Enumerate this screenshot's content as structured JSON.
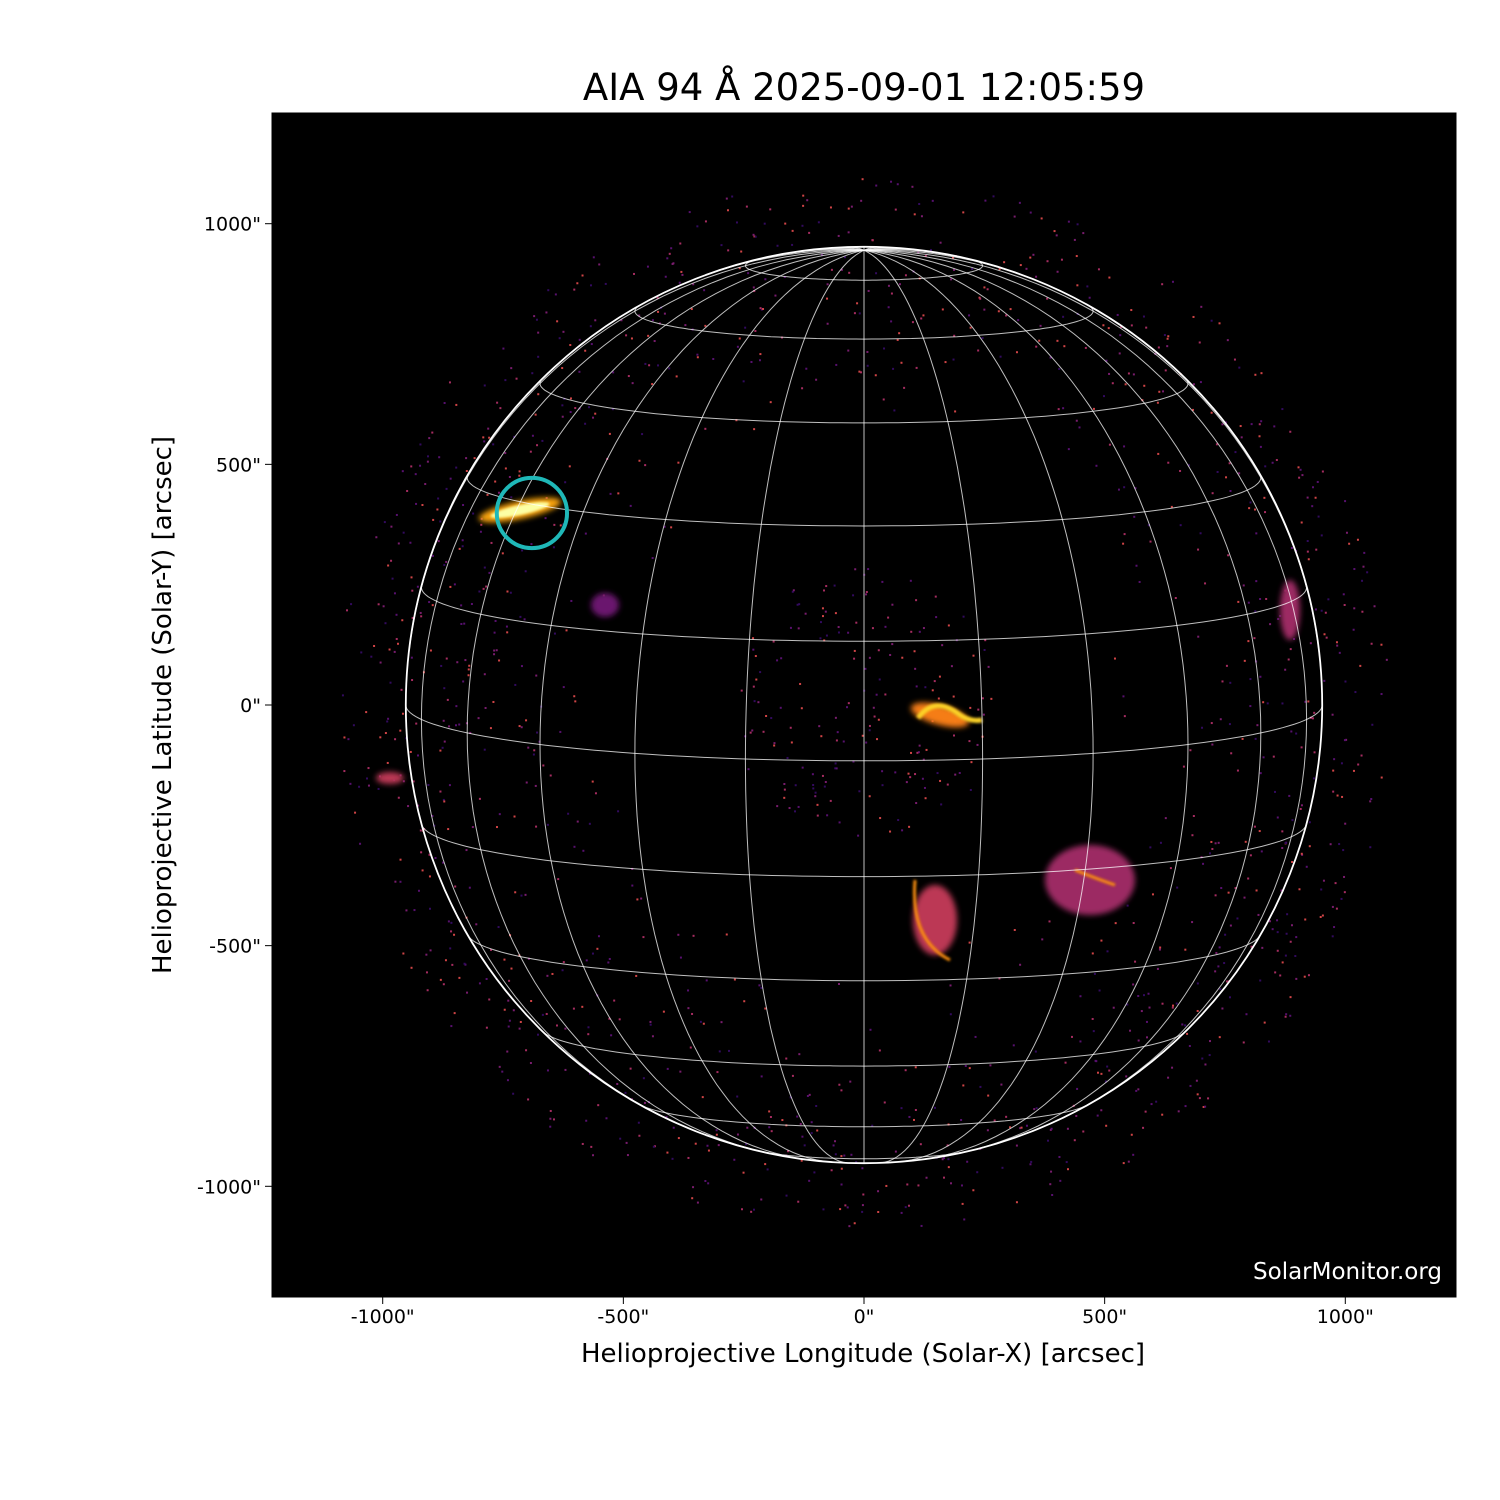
{
  "chart_data": {
    "type": "image",
    "title": "AIA 94 Å 2025-09-01 12:05:59",
    "xlabel": "Helioprojective Longitude (Solar-X) [arcsec]",
    "ylabel": "Helioprojective Latitude (Solar-Y) [arcsec]",
    "xlim": [
      -1230,
      1230
    ],
    "ylim": [
      -1230,
      1230
    ],
    "x_ticks": [
      -1000,
      -500,
      0,
      500,
      1000
    ],
    "y_ticks": [
      1000,
      500,
      0,
      -500,
      -1000
    ],
    "x_tick_labels": [
      "-1000\"",
      "-500\"",
      "0\"",
      "500\"",
      "1000\""
    ],
    "y_tick_labels": [
      "1000\"",
      "500\"",
      "0\"",
      "-500\"",
      "-1000\""
    ],
    "solar_radius_arcsec": 952,
    "b0_deg": 7,
    "grid_spacing_deg": 15,
    "colormap": "inferno-like (black-purple-orange-yellow)",
    "annotation_circle": {
      "x": -690,
      "y": 399,
      "radius": 73,
      "color": "#1fb8b8"
    },
    "grid_color": "#ffffff",
    "watermark": "SolarMonitor.org"
  }
}
